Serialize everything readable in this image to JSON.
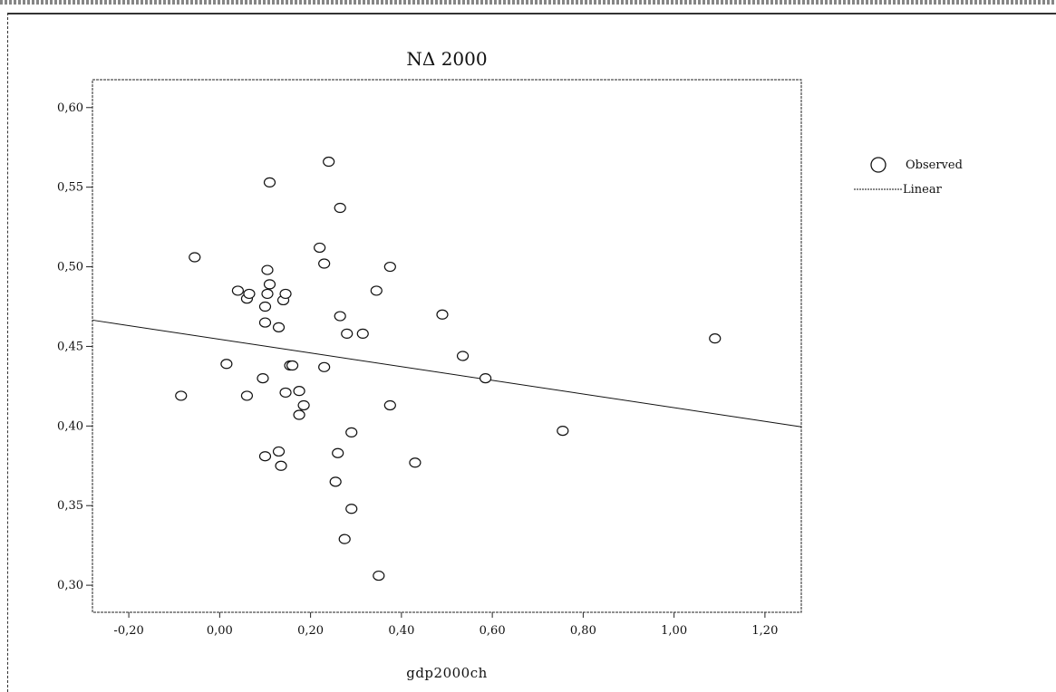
{
  "chart_data": {
    "type": "scatter",
    "title": "ΝΔ 2000",
    "xlabel": "gdp2000ch",
    "ylabel": "",
    "xlim": [
      -0.28,
      1.28
    ],
    "ylim": [
      0.283,
      0.6175
    ],
    "xticks": [
      -0.2,
      0.0,
      0.2,
      0.4,
      0.6,
      0.8,
      1.0,
      1.2
    ],
    "xtick_labels": [
      "-0,20",
      "0,00",
      "0,20",
      "0,40",
      "0,60",
      "0,80",
      "1,00",
      "1,20"
    ],
    "yticks": [
      0.3,
      0.35,
      0.4,
      0.45,
      0.5,
      0.55,
      0.6
    ],
    "ytick_labels": [
      "0,30",
      "0,35",
      "0,40",
      "0,45",
      "0,50",
      "0,55",
      "0,60"
    ],
    "grid": false,
    "legend": {
      "position": "right",
      "entries": [
        {
          "label": "Observed",
          "marker": "circle"
        },
        {
          "label": "Linear",
          "marker": "line"
        }
      ]
    },
    "series": [
      {
        "name": "Observed",
        "points": [
          [
            -0.085,
            0.419
          ],
          [
            -0.055,
            0.506
          ],
          [
            0.015,
            0.439
          ],
          [
            0.04,
            0.485
          ],
          [
            0.06,
            0.48
          ],
          [
            0.065,
            0.483
          ],
          [
            0.06,
            0.419
          ],
          [
            0.095,
            0.43
          ],
          [
            0.1,
            0.465
          ],
          [
            0.1,
            0.475
          ],
          [
            0.1,
            0.381
          ],
          [
            0.105,
            0.498
          ],
          [
            0.105,
            0.483
          ],
          [
            0.11,
            0.489
          ],
          [
            0.11,
            0.553
          ],
          [
            0.13,
            0.462
          ],
          [
            0.13,
            0.384
          ],
          [
            0.135,
            0.375
          ],
          [
            0.14,
            0.479
          ],
          [
            0.145,
            0.483
          ],
          [
            0.145,
            0.421
          ],
          [
            0.155,
            0.438
          ],
          [
            0.16,
            0.438
          ],
          [
            0.175,
            0.422
          ],
          [
            0.175,
            0.407
          ],
          [
            0.185,
            0.413
          ],
          [
            0.22,
            0.512
          ],
          [
            0.23,
            0.502
          ],
          [
            0.23,
            0.437
          ],
          [
            0.24,
            0.566
          ],
          [
            0.255,
            0.365
          ],
          [
            0.26,
            0.383
          ],
          [
            0.265,
            0.537
          ],
          [
            0.265,
            0.469
          ],
          [
            0.275,
            0.329
          ],
          [
            0.28,
            0.458
          ],
          [
            0.29,
            0.396
          ],
          [
            0.29,
            0.348
          ],
          [
            0.315,
            0.458
          ],
          [
            0.345,
            0.485
          ],
          [
            0.35,
            0.306
          ],
          [
            0.375,
            0.5
          ],
          [
            0.375,
            0.413
          ],
          [
            0.43,
            0.377
          ],
          [
            0.49,
            0.47
          ],
          [
            0.535,
            0.444
          ],
          [
            0.585,
            0.43
          ],
          [
            0.755,
            0.397
          ],
          [
            1.09,
            0.455
          ]
        ]
      },
      {
        "name": "Linear",
        "line": [
          [
            -0.28,
            0.4665
          ],
          [
            1.28,
            0.3995
          ]
        ]
      }
    ]
  }
}
